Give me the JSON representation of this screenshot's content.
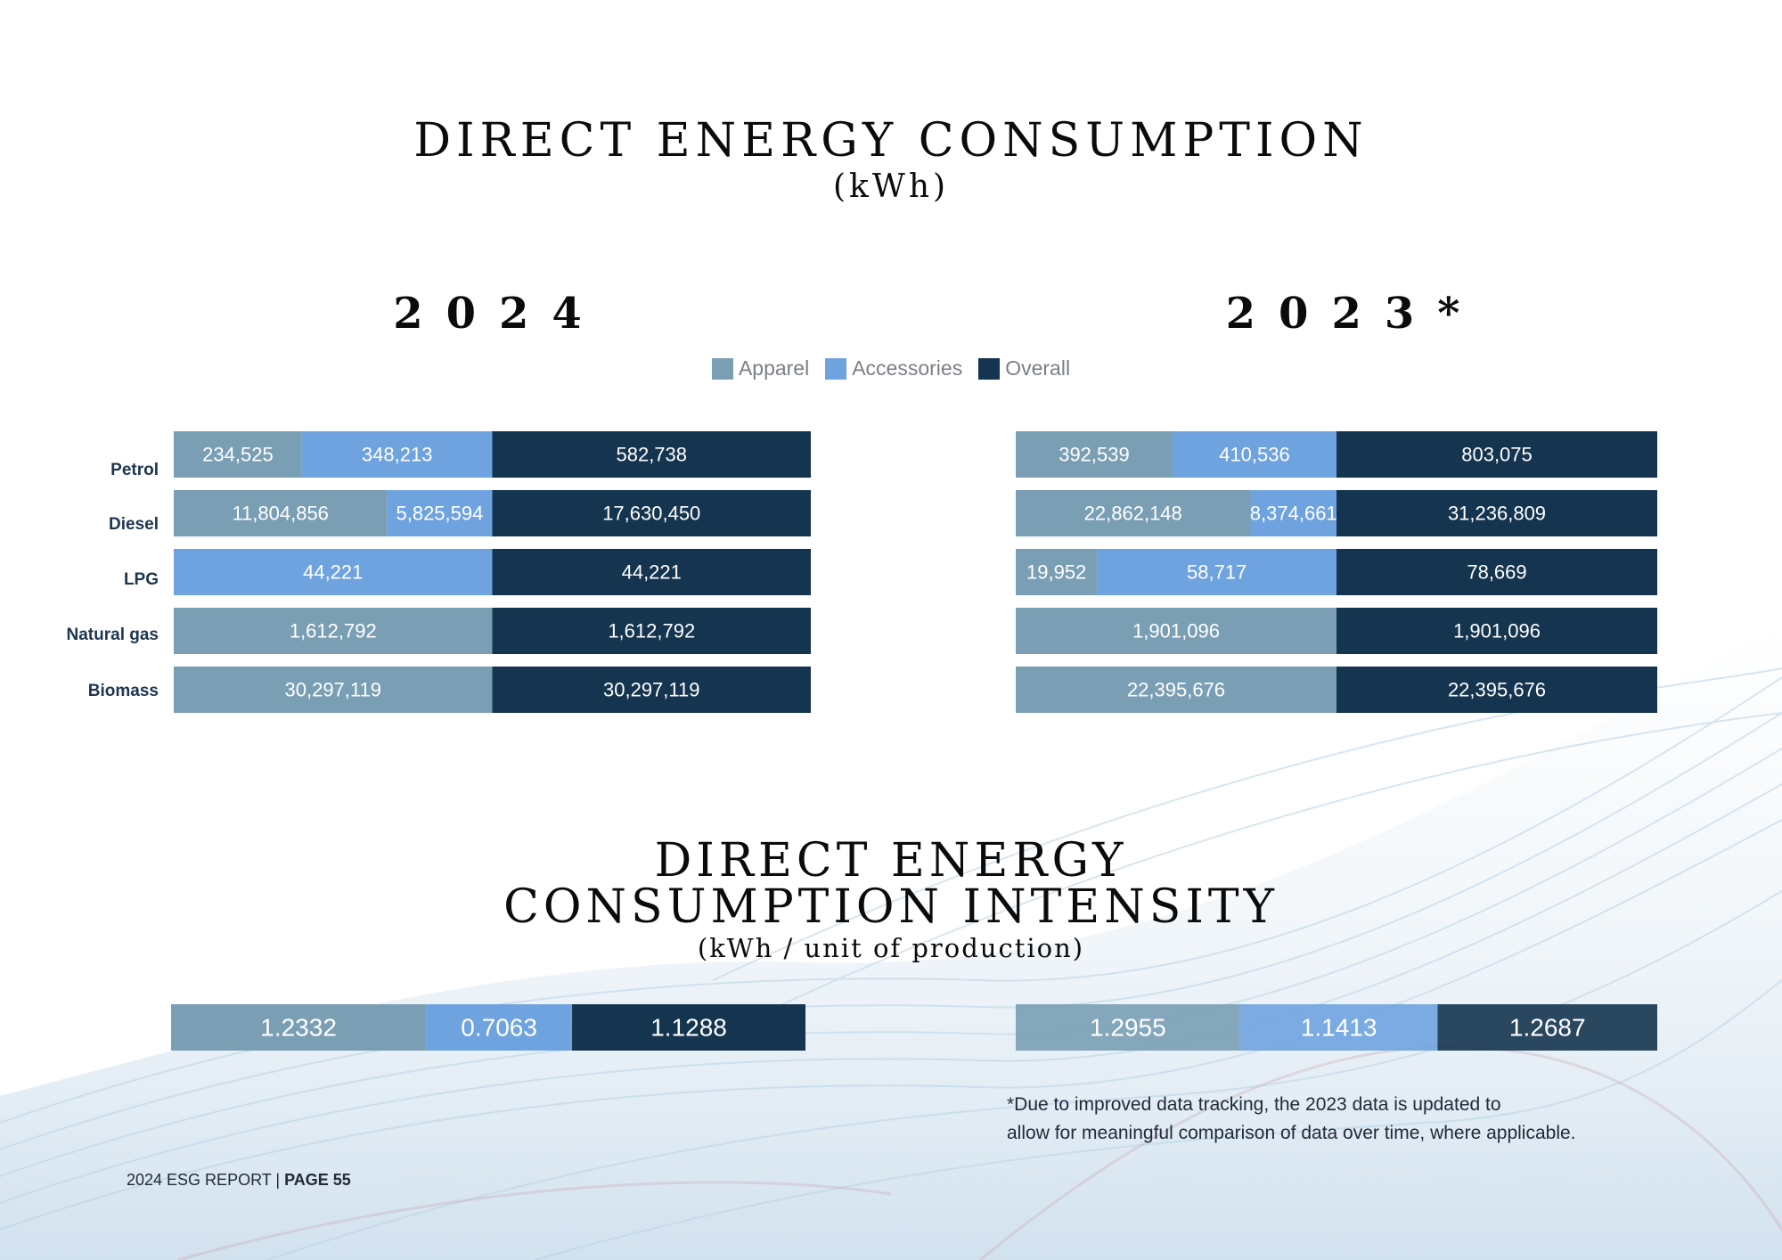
{
  "page": {
    "title_line1": "DIRECT ENERGY CONSUMPTION",
    "title_unit": "(kWh)",
    "year_left": "2024",
    "year_right": "2023*",
    "intensity_title_line1": "DIRECT ENERGY",
    "intensity_title_line2": "CONSUMPTION INTENSITY",
    "intensity_unit": "(kWh / unit of production)",
    "footnote_line1": "*Due to improved data tracking, the 2023 data is updated to",
    "footnote_line2": "allow for meaningful comparison of data over time, where applicable.",
    "footer_report": "2024 ESG REPORT | ",
    "footer_page": "PAGE 55"
  },
  "legend": [
    {
      "label": "Apparel",
      "color": "#7a9fb5"
    },
    {
      "label": "Accessories",
      "color": "#6fa3df"
    },
    {
      "label": "Overall",
      "color": "#15344f"
    }
  ],
  "chart_data": [
    {
      "type": "bar",
      "orientation": "horizontal",
      "stacked": true,
      "title": "2024",
      "categories": [
        "Petrol",
        "Diesel",
        "LPG",
        "Natural gas",
        "Biomass"
      ],
      "series": [
        {
          "name": "Apparel",
          "values": [
            234525,
            11804856,
            0,
            1612792,
            30297119
          ],
          "labels": [
            "234,525",
            "11,804,856",
            "",
            "1,612,792",
            "30,297,119"
          ]
        },
        {
          "name": "Accessories",
          "values": [
            348213,
            5825594,
            44221,
            0,
            0
          ],
          "labels": [
            "348,213",
            "5,825,594",
            "44,221",
            "",
            ""
          ]
        },
        {
          "name": "Overall",
          "values": [
            582738,
            17630450,
            44221,
            1612792,
            30297119
          ],
          "labels": [
            "582,738",
            "17,630,450",
            "44,221",
            "1,612,792",
            "30,297,119"
          ]
        }
      ]
    },
    {
      "type": "bar",
      "orientation": "horizontal",
      "stacked": true,
      "title": "2023*",
      "categories": [
        "Petrol",
        "Diesel",
        "LPG",
        "Natural gas",
        "Biomass"
      ],
      "series": [
        {
          "name": "Apparel",
          "values": [
            392539,
            22862148,
            19952,
            1901096,
            22395676
          ],
          "labels": [
            "392,539",
            "22,862,148",
            "19,952",
            "1,901,096",
            "22,395,676"
          ]
        },
        {
          "name": "Accessories",
          "values": [
            410536,
            8374661,
            58717,
            0,
            0
          ],
          "labels": [
            "410,536",
            "8,374,661",
            "58,717",
            "",
            ""
          ]
        },
        {
          "name": "Overall",
          "values": [
            803075,
            31236809,
            78669,
            1901096,
            22395676
          ],
          "labels": [
            "803,075",
            "31,236,809",
            "78,669",
            "1,901,096",
            "22,395,676"
          ]
        }
      ]
    },
    {
      "type": "bar",
      "orientation": "horizontal",
      "stacked": true,
      "title": "Direct Energy Consumption Intensity 2024",
      "categories": [
        "Intensity"
      ],
      "series": [
        {
          "name": "Apparel",
          "values": [
            1.2332
          ],
          "labels": [
            "1.2332"
          ]
        },
        {
          "name": "Accessories",
          "values": [
            0.7063
          ],
          "labels": [
            "0.7063"
          ]
        },
        {
          "name": "Overall",
          "values": [
            1.1288
          ],
          "labels": [
            "1.1288"
          ]
        }
      ]
    },
    {
      "type": "bar",
      "orientation": "horizontal",
      "stacked": true,
      "title": "Direct Energy Consumption Intensity 2023",
      "categories": [
        "Intensity"
      ],
      "series": [
        {
          "name": "Apparel",
          "values": [
            1.2955
          ],
          "labels": [
            "1.2955"
          ]
        },
        {
          "name": "Accessories",
          "values": [
            1.1413
          ],
          "labels": [
            "1.1413"
          ]
        },
        {
          "name": "Overall",
          "values": [
            1.2687
          ],
          "labels": [
            "1.2687"
          ]
        }
      ]
    }
  ]
}
